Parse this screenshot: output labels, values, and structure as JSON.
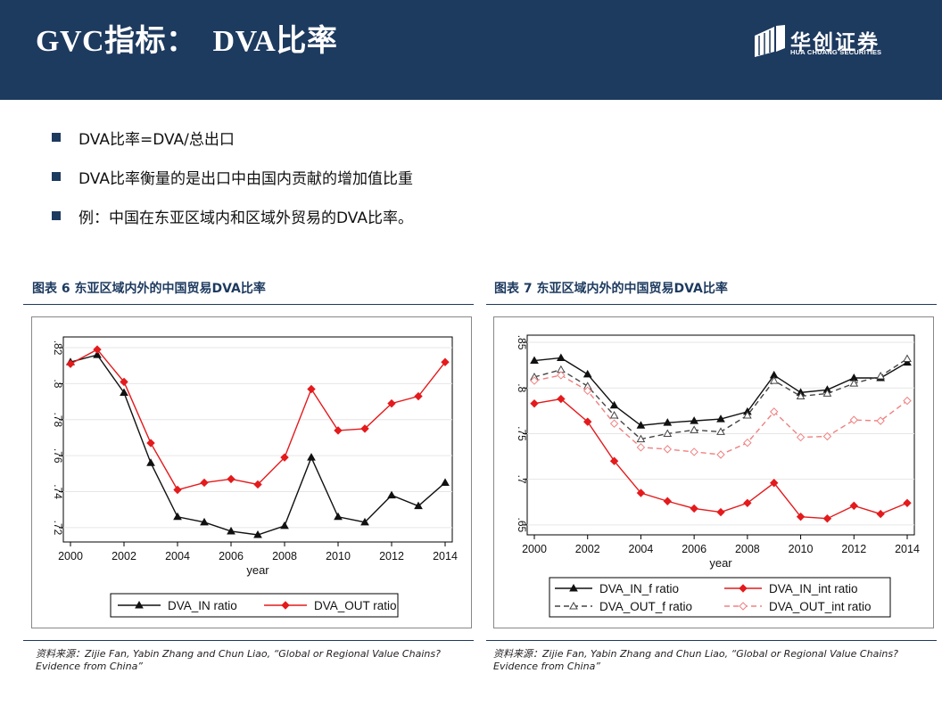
{
  "header": {
    "title": "GVC指标：  DVA比率",
    "logo_cn": "华创证券",
    "logo_en": "HUA CHUANG SECURITIES",
    "bg_color": "#1d3a5f"
  },
  "bullets": [
    "DVA比率=DVA/总出口",
    "DVA比率衡量的是出口中由国内贡献的增加值比重",
    "例：中国在东亚区域内和区域外贸易的DVA比率。"
  ],
  "figures": [
    {
      "title": "图表 6 东亚区域内外的中国贸易DVA比率",
      "source": [
        "资料来源：Zijie Fan, Yabin Zhang and Chun Liao, “Global or Regional Value Chains?",
        "Evidence from China”"
      ]
    },
    {
      "title": "图表 7 东亚区域内外的中国贸易DVA比率",
      "source": [
        "资料来源：Zijie Fan, Yabin Zhang and Chun Liao, “Global or Regional Value Chains?",
        "Evidence from China”"
      ]
    }
  ],
  "chart_data": [
    {
      "type": "line",
      "title": "图表 6 东亚区域内外的中国贸易DVA比率",
      "xlabel": "year",
      "ylabel": "",
      "x": [
        2000,
        2001,
        2002,
        2003,
        2004,
        2005,
        2006,
        2007,
        2008,
        2009,
        2010,
        2011,
        2012,
        2013,
        2014
      ],
      "xticks": [
        "2000",
        "2002",
        "2004",
        "2006",
        "2008",
        "2010",
        "2012",
        "2014"
      ],
      "yticks": [
        ".72",
        ".74",
        ".76",
        ".78",
        ".8",
        ".82"
      ],
      "xlim": [
        2000,
        2014
      ],
      "ylim": [
        0.715,
        0.823
      ],
      "grid": true,
      "legend_position": "bottom",
      "series": [
        {
          "name": "DVA_IN ratio",
          "color": "#111111",
          "marker": "triangle",
          "dash": "solid",
          "values": [
            0.812,
            0.816,
            0.795,
            0.756,
            0.726,
            0.723,
            0.718,
            0.716,
            0.721,
            0.759,
            0.726,
            0.723,
            0.738,
            0.732,
            0.745
          ]
        },
        {
          "name": "DVA_OUT ratio",
          "color": "#e41a1c",
          "marker": "diamond",
          "dash": "solid",
          "values": [
            0.811,
            0.819,
            0.801,
            0.767,
            0.741,
            0.745,
            0.747,
            0.744,
            0.759,
            0.797,
            0.774,
            0.775,
            0.789,
            0.793,
            0.812
          ]
        }
      ]
    },
    {
      "type": "line",
      "title": "图表 7 东亚区域内外的中国贸易DVA比率",
      "xlabel": "year",
      "ylabel": "",
      "x": [
        2000,
        2001,
        2002,
        2003,
        2004,
        2005,
        2006,
        2007,
        2008,
        2009,
        2010,
        2011,
        2012,
        2013,
        2014
      ],
      "xticks": [
        "2000",
        "2002",
        "2004",
        "2006",
        "2008",
        "2010",
        "2012",
        "2014"
      ],
      "yticks": [
        ".65",
        ".7",
        ".75",
        ".8",
        ".85"
      ],
      "xlim": [
        2000,
        2014
      ],
      "ylim": [
        0.645,
        0.852
      ],
      "grid": true,
      "legend_position": "bottom",
      "series": [
        {
          "name": "DVA_IN_f ratio",
          "color": "#111111",
          "marker": "triangle",
          "dash": "solid",
          "values": [
            0.83,
            0.833,
            0.815,
            0.781,
            0.759,
            0.762,
            0.764,
            0.766,
            0.774,
            0.814,
            0.795,
            0.798,
            0.811,
            0.811,
            0.828
          ]
        },
        {
          "name": "DVA_IN_int ratio",
          "color": "#e41a1c",
          "marker": "diamond",
          "dash": "solid",
          "values": [
            0.783,
            0.788,
            0.763,
            0.72,
            0.685,
            0.676,
            0.668,
            0.664,
            0.674,
            0.696,
            0.659,
            0.657,
            0.671,
            0.662,
            0.674
          ]
        },
        {
          "name": "DVA_OUT_f ratio",
          "color": "#444444",
          "marker": "triangle-open",
          "dash": "dashed",
          "values": [
            0.812,
            0.82,
            0.802,
            0.77,
            0.744,
            0.75,
            0.754,
            0.752,
            0.77,
            0.808,
            0.791,
            0.794,
            0.805,
            0.813,
            0.832
          ]
        },
        {
          "name": "DVA_OUT_int ratio",
          "color": "#f08080",
          "marker": "diamond-open",
          "dash": "dashed",
          "values": [
            0.808,
            0.814,
            0.797,
            0.761,
            0.735,
            0.733,
            0.73,
            0.727,
            0.74,
            0.774,
            0.746,
            0.747,
            0.765,
            0.764,
            0.786
          ]
        }
      ]
    }
  ]
}
